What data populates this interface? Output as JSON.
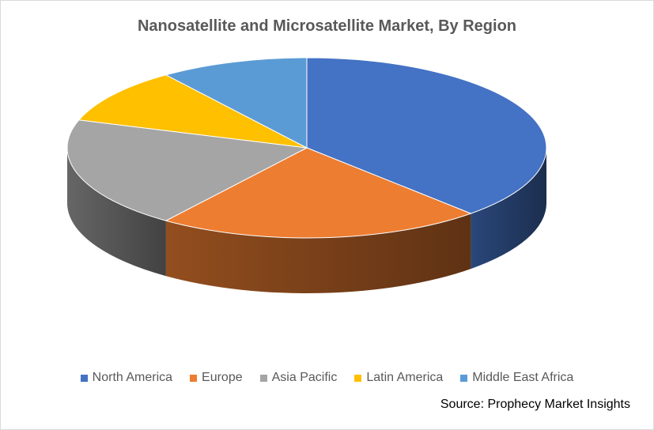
{
  "chart_data": {
    "type": "pie",
    "title": "Nanosatellite and Microsatellite Market, By Region",
    "categories": [
      "North America",
      "Europe",
      "Asia Pacific",
      "Latin America",
      "Middle East Africa"
    ],
    "values": [
      38,
      22,
      20,
      10,
      10
    ],
    "colors": [
      "#4472C4",
      "#ED7D31",
      "#A5A5A5",
      "#FFC000",
      "#5B9BD5"
    ],
    "legend_position": "bottom",
    "style": "3d"
  },
  "source_label": "Source:",
  "source_text": "Prophecy Market Insights"
}
